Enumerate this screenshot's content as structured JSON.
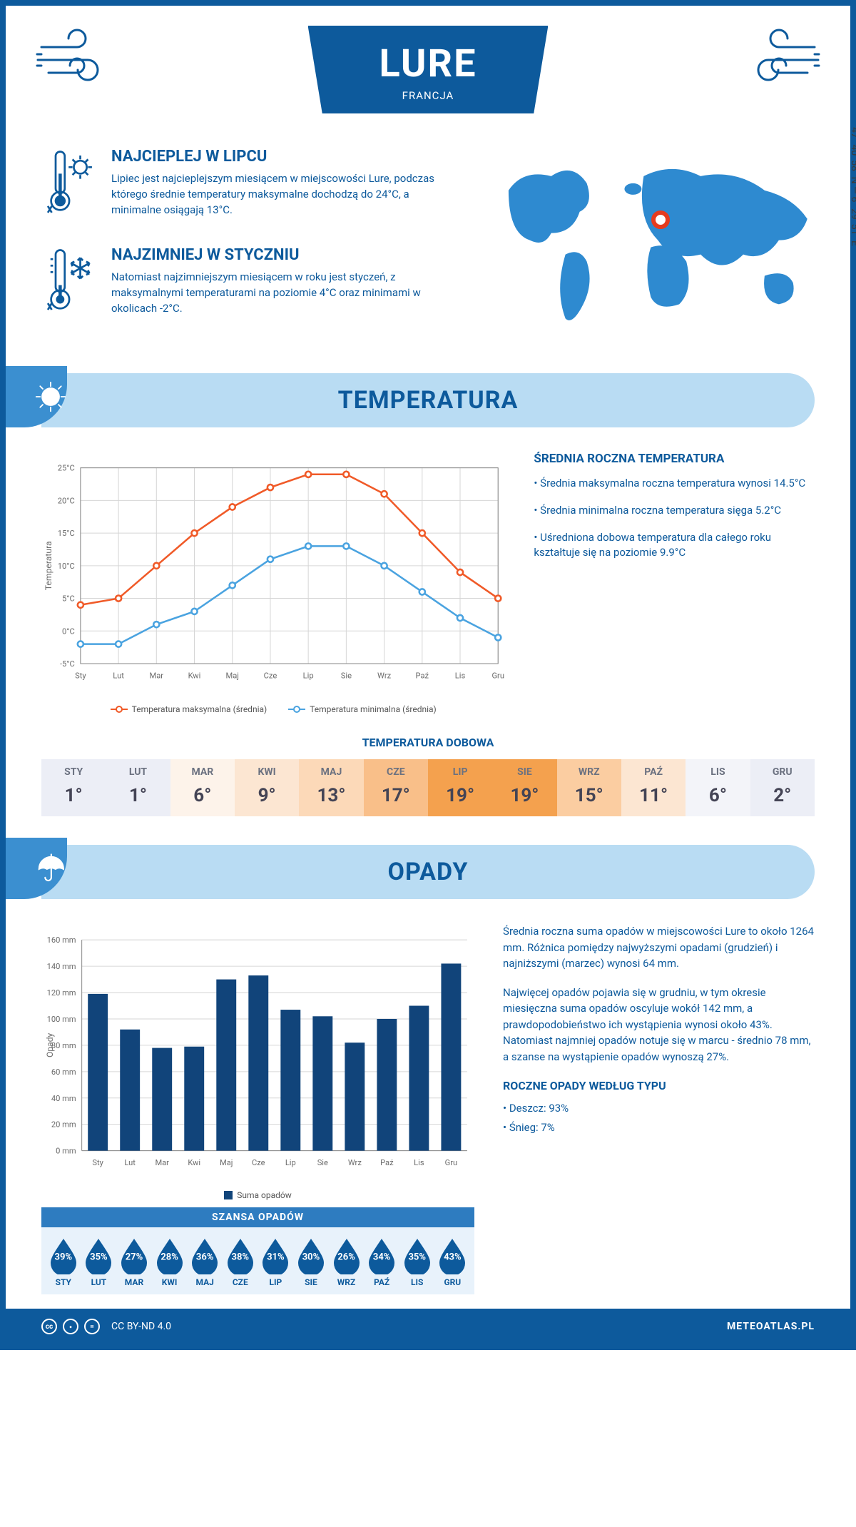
{
  "colors": {
    "primary": "#0d5a9c",
    "light_blue": "#b9dcf3",
    "mid_blue": "#3b8fd0",
    "map_blue": "#2e8ad0",
    "orange_line": "#f05a28",
    "blue_line": "#4aa3e0",
    "bar_fill": "#11447a",
    "bg_white": "#ffffff",
    "grid": "#d6d6d6"
  },
  "header": {
    "city": "LURE",
    "country": "FRANCJA"
  },
  "coords": "47° 40' 58'' N — 6° 29' 51'' E",
  "marker_pos": {
    "left_pct": 48,
    "top_pct": 32
  },
  "info": {
    "hot": {
      "title": "NAJCIEPLEJ W LIPCU",
      "text": "Lipiec jest najcieplejszym miesiącem w miejscowości Lure, podczas którego średnie temperatury maksymalne dochodzą do 24°C, a minimalne osiągają 13°C."
    },
    "cold": {
      "title": "NAJZIMNIEJ W STYCZNIU",
      "text": "Natomiast najzimniejszym miesiącem w roku jest styczeń, z maksymalnymi temperaturami na poziomie 4°C oraz minimami w okolicach -2°C."
    }
  },
  "sections": {
    "temperature": "TEMPERATURA",
    "precip": "OPADY"
  },
  "temp_chart": {
    "months": [
      "Sty",
      "Lut",
      "Mar",
      "Kwi",
      "Maj",
      "Cze",
      "Lip",
      "Sie",
      "Wrz",
      "Paź",
      "Lis",
      "Gru"
    ],
    "y_label": "Temperatura",
    "y_min": -5,
    "y_max": 25,
    "y_step": 5,
    "y_ticks": [
      "-5°C",
      "0°C",
      "5°C",
      "10°C",
      "15°C",
      "20°C",
      "25°C"
    ],
    "max_series": [
      4,
      5,
      10,
      15,
      19,
      22,
      24,
      24,
      21,
      15,
      9,
      5
    ],
    "min_series": [
      -2,
      -2,
      1,
      3,
      7,
      11,
      13,
      13,
      10,
      6,
      2,
      -1
    ],
    "legend_max": "Temperatura maksymalna (średnia)",
    "legend_min": "Temperatura minimalna (średnia)"
  },
  "temp_side": {
    "title": "ŚREDNIA ROCZNA TEMPERATURA",
    "p1": "• Średnia maksymalna roczna temperatura wynosi 14.5°C",
    "p2": "• Średnia minimalna roczna temperatura sięga 5.2°C",
    "p3": "• Uśredniona dobowa temperatura dla całego roku kształtuje się na poziomie 9.9°C"
  },
  "daily_temp": {
    "title": "TEMPERATURA DOBOWA",
    "months": [
      "STY",
      "LUT",
      "MAR",
      "KWI",
      "MAJ",
      "CZE",
      "LIP",
      "SIE",
      "WRZ",
      "PAŹ",
      "LIS",
      "GRU"
    ],
    "values": [
      "1°",
      "1°",
      "6°",
      "9°",
      "13°",
      "17°",
      "19°",
      "19°",
      "15°",
      "11°",
      "6°",
      "2°"
    ],
    "bg_colors": [
      "#eceef6",
      "#eceef6",
      "#fdf3ea",
      "#fce6d2",
      "#fcd9b8",
      "#f9bf89",
      "#f4a14e",
      "#f4a14e",
      "#fbcda1",
      "#fce6d2",
      "#f3f4f9",
      "#eceef6"
    ]
  },
  "precip_chart": {
    "y_label": "Opady",
    "y_min": 0,
    "y_max": 160,
    "y_step": 20,
    "months": [
      "Sty",
      "Lut",
      "Mar",
      "Kwi",
      "Maj",
      "Cze",
      "Lip",
      "Sie",
      "Wrz",
      "Paź",
      "Lis",
      "Gru"
    ],
    "values": [
      119,
      92,
      78,
      79,
      130,
      133,
      107,
      102,
      82,
      100,
      110,
      142
    ],
    "legend": "Suma opadów"
  },
  "precip_side": {
    "p1": "Średnia roczna suma opadów w miejscowości Lure to około 1264 mm. Różnica pomiędzy najwyższymi opadami (grudzień) i najniższymi (marzec) wynosi 64 mm.",
    "p2": "Najwięcej opadów pojawia się w grudniu, w tym okresie miesięczna suma opadów oscyluje wokół 142 mm, a prawdopodobieństwo ich wystąpienia wynosi około 43%. Natomiast najmniej opadów notuje się w marcu - średnio 78 mm, a szanse na wystąpienie opadów wynoszą 27%.",
    "type_title": "ROCZNE OPADY WEDŁUG TYPU",
    "rain": "• Deszcz: 93%",
    "snow": "• Śnieg: 7%"
  },
  "chance": {
    "title": "SZANSA OPADÓW",
    "months": [
      "STY",
      "LUT",
      "MAR",
      "KWI",
      "MAJ",
      "CZE",
      "LIP",
      "SIE",
      "WRZ",
      "PAŹ",
      "LIS",
      "GRU"
    ],
    "values": [
      "39%",
      "35%",
      "27%",
      "28%",
      "36%",
      "38%",
      "31%",
      "30%",
      "26%",
      "34%",
      "35%",
      "43%"
    ]
  },
  "footer": {
    "license": "CC BY-ND 4.0",
    "site": "METEOATLAS.PL"
  }
}
